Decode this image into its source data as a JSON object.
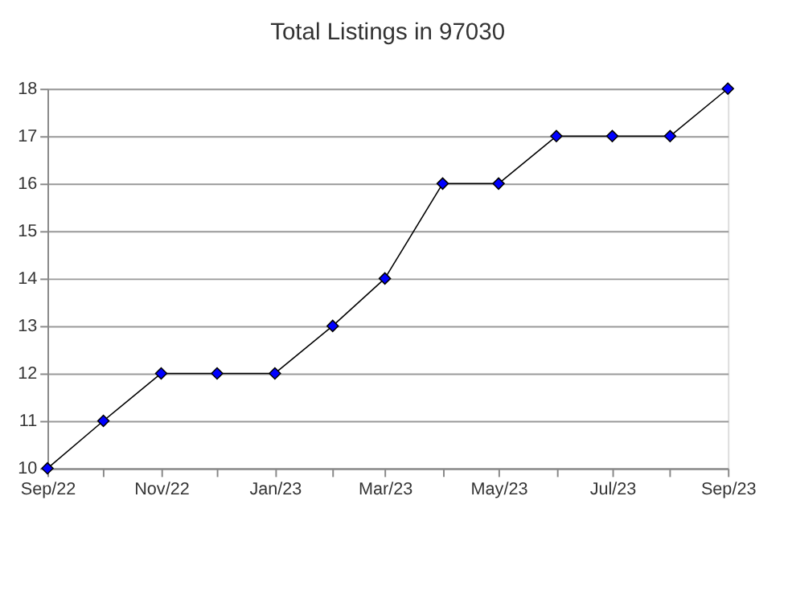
{
  "chart_data": {
    "type": "line",
    "title": "Total Listings in 97030",
    "x": [
      "2022-09",
      "2022-10",
      "2022-11",
      "2022-12",
      "2023-01",
      "2023-02",
      "2023-03",
      "2023-04",
      "2023-05",
      "2023-06",
      "2023-07",
      "2023-08",
      "2023-09"
    ],
    "series": [
      {
        "color": "#0000ff",
        "values": [
          10,
          11,
          12,
          12,
          12,
          13,
          14,
          16,
          16,
          17,
          17,
          17,
          18
        ]
      }
    ],
    "xlim": [
      "2022-09",
      "2023-09"
    ],
    "xticks": [
      {
        "value": "2022-09",
        "label": "Sep/22"
      },
      {
        "value": "2022-10",
        "label": null
      },
      {
        "value": "2022-11",
        "label": "Nov/22"
      },
      {
        "value": "2022-12",
        "label": null
      },
      {
        "value": "2023-01",
        "label": "Jan/23"
      },
      {
        "value": "2023-02",
        "label": null
      },
      {
        "value": "2023-03",
        "label": "Mar/23"
      },
      {
        "value": "2023-04",
        "label": null
      },
      {
        "value": "2023-05",
        "label": "May/23"
      },
      {
        "value": "2023-06",
        "label": null
      },
      {
        "value": "2023-07",
        "label": "Jul/23"
      },
      {
        "value": "2023-08",
        "label": null
      },
      {
        "value": "2023-09",
        "label": "Sep/23"
      }
    ],
    "ylim": [
      10,
      18
    ],
    "yticks": [
      10,
      11,
      12,
      13,
      14,
      15,
      16,
      17,
      18
    ],
    "grid": "y",
    "marker": "diamond",
    "line_style": "solid",
    "legend": false
  }
}
